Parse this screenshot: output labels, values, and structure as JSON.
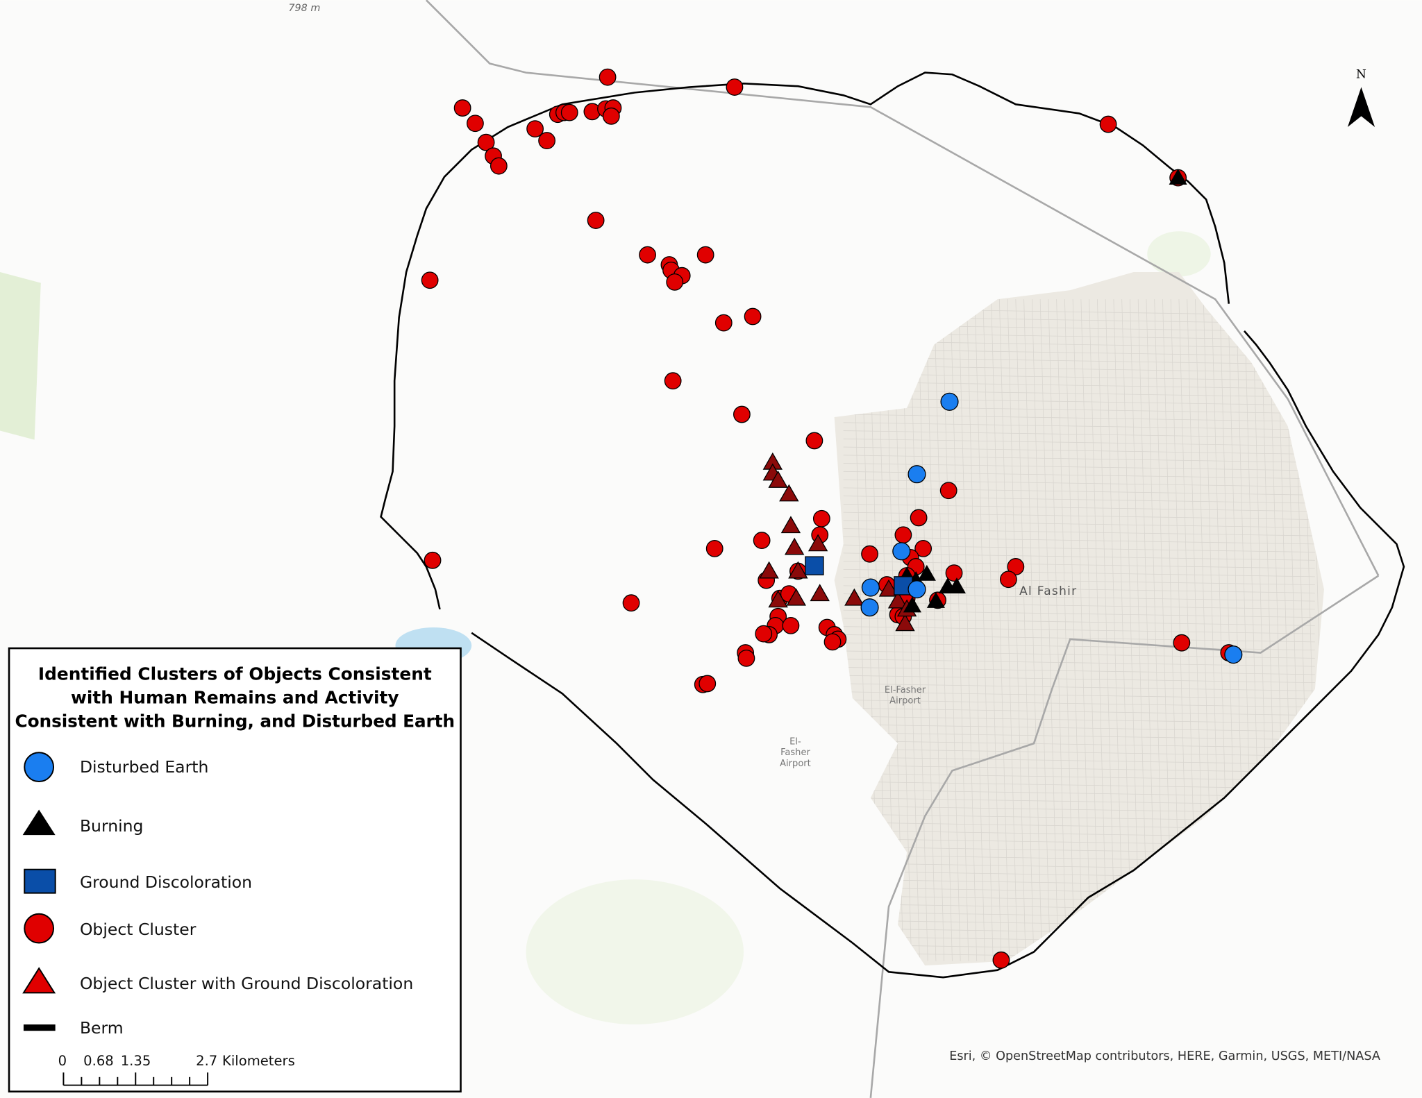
{
  "map": {
    "elevation_label": "798 m",
    "place_labels": {
      "city": "Al Fashir",
      "airport_1": "El-Fasher Airport",
      "airport_2_line1": "El-",
      "airport_2_line2": "Fasher",
      "airport_2_line3": "Airport",
      "airport_1_line1": "El-Fasher",
      "airport_1_line2": "Airport"
    },
    "north_arrow_label": "N",
    "attribution": "Esri, © OpenStreetMap contributors, HERE, Garmin, USGS, METI/NASA"
  },
  "legend": {
    "title_line1": "Identified Clusters of Objects Consistent",
    "title_line2": "with Human Remains and Activity",
    "title_line3": "Consistent with Burning, and Disturbed Earth",
    "items": [
      {
        "label": "Disturbed Earth",
        "symbol": "circle",
        "color": "#1a7ef0"
      },
      {
        "label": "Burning",
        "symbol": "triangle",
        "color": "#000000"
      },
      {
        "label": "Ground Discoloration",
        "symbol": "square",
        "color": "#0a4ea8"
      },
      {
        "label": "Object Cluster",
        "symbol": "circle",
        "color": "#e00000"
      },
      {
        "label": "Object Cluster with Ground Discoloration",
        "symbol": "triangle",
        "color": "#e00000"
      },
      {
        "label": "Berm",
        "symbol": "line",
        "color": "#000000"
      }
    ],
    "scale_bar": {
      "ticks": [
        "0",
        "0.68",
        "1.35",
        "2.7"
      ],
      "unit": "Kilometers"
    }
  },
  "colors": {
    "object_cluster_discoloration_on_map": "#8b0a0a",
    "road": "#a8a8a8",
    "berm": "#000000",
    "urban_area": "#ece9e2"
  }
}
